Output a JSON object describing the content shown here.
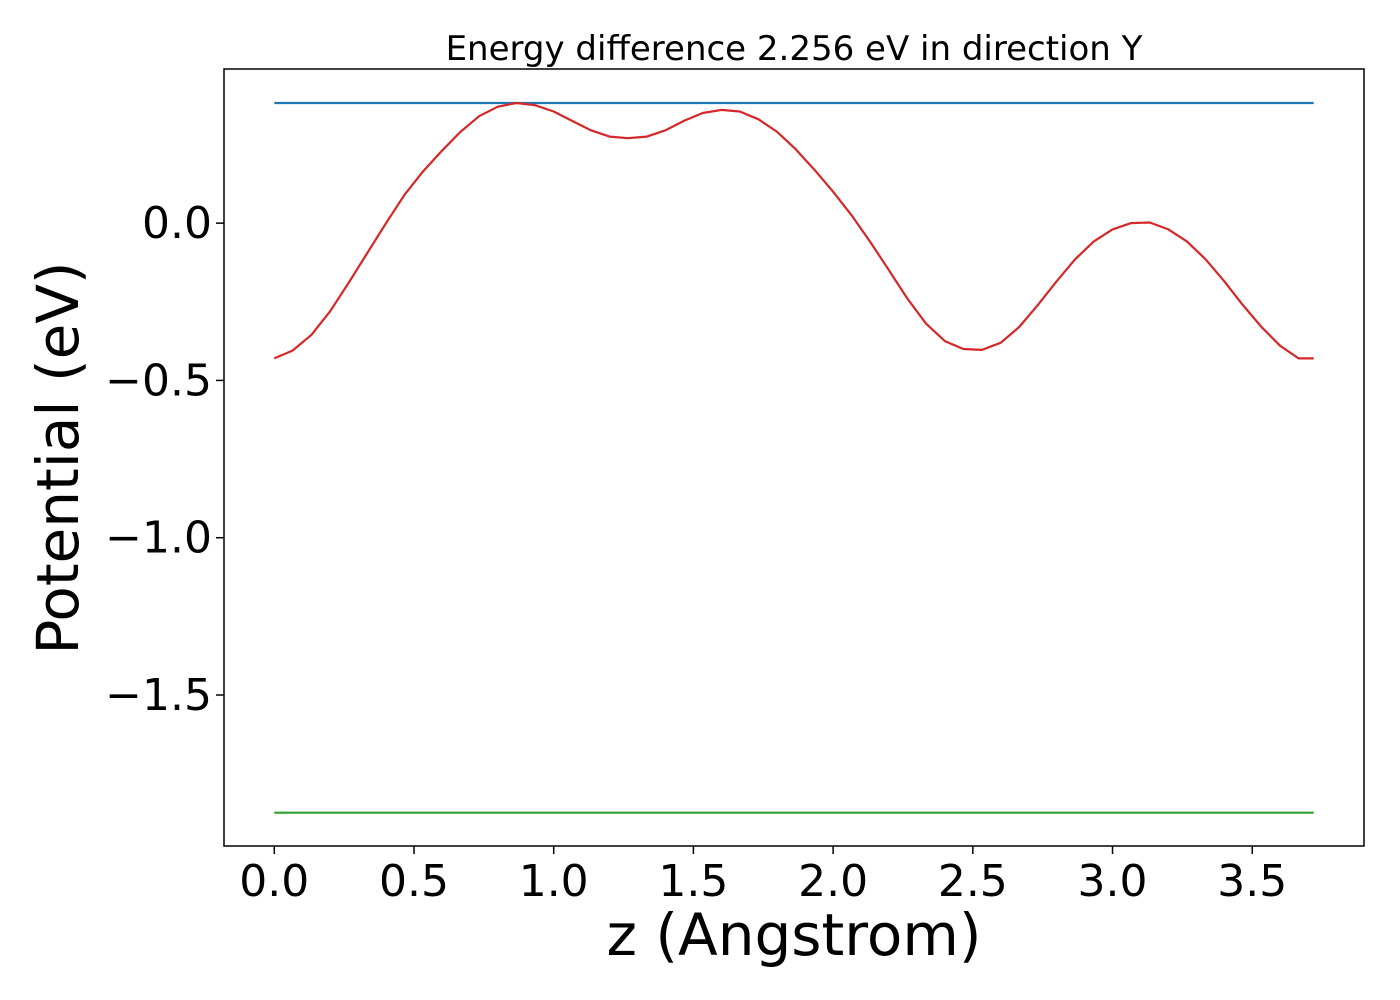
{
  "chart_data": {
    "type": "line",
    "title": "Energy difference 2.256 eV in direction Y",
    "xlabel": "z (Angstrom)",
    "ylabel": "Potential (eV)",
    "xlim": [
      -0.18,
      3.9
    ],
    "ylim": [
      -1.98,
      0.49
    ],
    "xticks": [
      0.0,
      0.5,
      1.0,
      1.5,
      2.0,
      2.5,
      3.0,
      3.5
    ],
    "xtick_labels": [
      "0.0",
      "0.5",
      "1.0",
      "1.5",
      "2.0",
      "2.5",
      "3.0",
      "3.5"
    ],
    "yticks": [
      0.0,
      -0.5,
      -1.0,
      -1.5
    ],
    "ytick_labels": [
      "0.0",
      "−0.5",
      "−1.0",
      "−1.5"
    ],
    "grid": false,
    "series": [
      {
        "color": "#1f77b4",
        "x": [
          0.0,
          3.72
        ],
        "y": [
          0.382,
          0.382
        ]
      },
      {
        "color": "#d62728",
        "x": [
          0.0,
          0.066,
          0.133,
          0.2,
          0.266,
          0.333,
          0.4,
          0.466,
          0.533,
          0.6,
          0.666,
          0.733,
          0.8,
          0.866,
          0.933,
          1.0,
          1.066,
          1.133,
          1.2,
          1.266,
          1.333,
          1.4,
          1.466,
          1.533,
          1.6,
          1.666,
          1.733,
          1.8,
          1.866,
          1.933,
          2.0,
          2.066,
          2.133,
          2.2,
          2.266,
          2.333,
          2.4,
          2.466,
          2.533,
          2.6,
          2.666,
          2.733,
          2.8,
          2.866,
          2.933,
          3.0,
          3.066,
          3.133,
          3.2,
          3.266,
          3.333,
          3.4,
          3.466,
          3.533,
          3.6,
          3.666,
          3.72
        ],
        "y": [
          -0.43,
          -0.405,
          -0.355,
          -0.28,
          -0.19,
          -0.095,
          0.0,
          0.09,
          0.165,
          0.23,
          0.29,
          0.34,
          0.37,
          0.382,
          0.375,
          0.355,
          0.325,
          0.295,
          0.275,
          0.27,
          0.275,
          0.295,
          0.325,
          0.35,
          0.36,
          0.355,
          0.33,
          0.29,
          0.235,
          0.17,
          0.1,
          0.025,
          -0.06,
          -0.15,
          -0.24,
          -0.32,
          -0.375,
          -0.4,
          -0.403,
          -0.38,
          -0.33,
          -0.26,
          -0.185,
          -0.115,
          -0.058,
          -0.02,
          0.0,
          0.002,
          -0.02,
          -0.058,
          -0.115,
          -0.185,
          -0.26,
          -0.33,
          -0.39,
          -0.43,
          -0.43
        ]
      },
      {
        "color": "#2ca02c",
        "x": [
          0.0,
          3.72
        ],
        "y": [
          -1.874,
          -1.874
        ]
      }
    ]
  }
}
